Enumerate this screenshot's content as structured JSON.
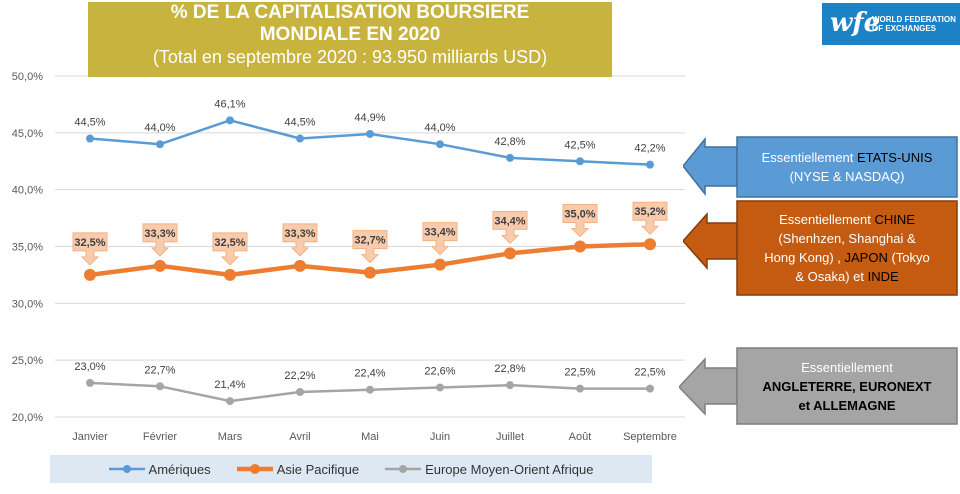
{
  "header": {
    "title_line1": "% DE LA CAPITALISATION BOURSIERE",
    "title_line2": "MONDIALE EN 2020",
    "subtitle": "(Total en septembre 2020 : 93.950 milliards USD)"
  },
  "logo": {
    "mark": "wfe",
    "text_line1": "WORLD FEDERATION",
    "text_line2": "OF EXCHANGES"
  },
  "callouts": {
    "americas": {
      "line1_prefix": "Essentiellement ",
      "line1_highlight": "ETATS-UNIS",
      "line2": "(NYSE & NASDAQ)",
      "color": "#5b9bd5",
      "highlight_color": "#000000"
    },
    "asia": {
      "line1_prefix": "Essentiellement ",
      "line1_highlight": "CHINE",
      "line2": "(Shenhzen, Shanghai &",
      "line3_a": "Hong Kong) , ",
      "line3_highlight": "JAPON",
      "line3_b": " (Tokyo",
      "line4_a": "& Osaka) et ",
      "line4_highlight": "INDE",
      "color": "#c55a11",
      "highlight_color": "#000000"
    },
    "emea": {
      "line1": "Essentiellement",
      "line2": "ANGLETERRE, EURONEXT",
      "line3": "et ALLEMAGNE",
      "color": "#a5a5a5",
      "highlight_color": "#000000"
    }
  },
  "chart_data": {
    "type": "line",
    "categories": [
      "Janvier",
      "Février",
      "Mars",
      "Avril",
      "Mai",
      "Juin",
      "Juillet",
      "Août",
      "Septembre"
    ],
    "ylim": [
      20,
      50
    ],
    "yticks": [
      20,
      25,
      30,
      35,
      40,
      45,
      50
    ],
    "ytick_labels": [
      "20,0%",
      "25,0%",
      "30,0%",
      "35,0%",
      "40,0%",
      "45,0%",
      "50,0%"
    ],
    "grid": true,
    "legend_position": "bottom",
    "series": [
      {
        "name": "Amériques",
        "color": "#5b9bd5",
        "values": [
          44.5,
          44.0,
          46.1,
          44.5,
          44.9,
          44.0,
          42.8,
          42.5,
          42.2
        ],
        "labels": [
          "44,5%",
          "44,0%",
          "46,1%",
          "44,5%",
          "44,9%",
          "44,0%",
          "42,8%",
          "42,5%",
          "42,2%"
        ]
      },
      {
        "name": "Asie Pacifique",
        "color": "#ed7d31",
        "values": [
          32.5,
          33.3,
          32.5,
          33.3,
          32.7,
          33.4,
          34.4,
          35.0,
          35.2
        ],
        "labels": [
          "32,5%",
          "33,3%",
          "32,5%",
          "33,3%",
          "32,7%",
          "33,4%",
          "34,4%",
          "35,0%",
          "35,2%"
        ]
      },
      {
        "name": "Europe Moyen-Orient Afrique",
        "color": "#a5a5a5",
        "values": [
          23.0,
          22.7,
          21.4,
          22.2,
          22.4,
          22.6,
          22.8,
          22.5,
          22.5
        ],
        "labels": [
          "23,0%",
          "22,7%",
          "21,4%",
          "22,2%",
          "22,4%",
          "22,6%",
          "22,8%",
          "22,5%",
          "22,5%"
        ]
      }
    ]
  }
}
